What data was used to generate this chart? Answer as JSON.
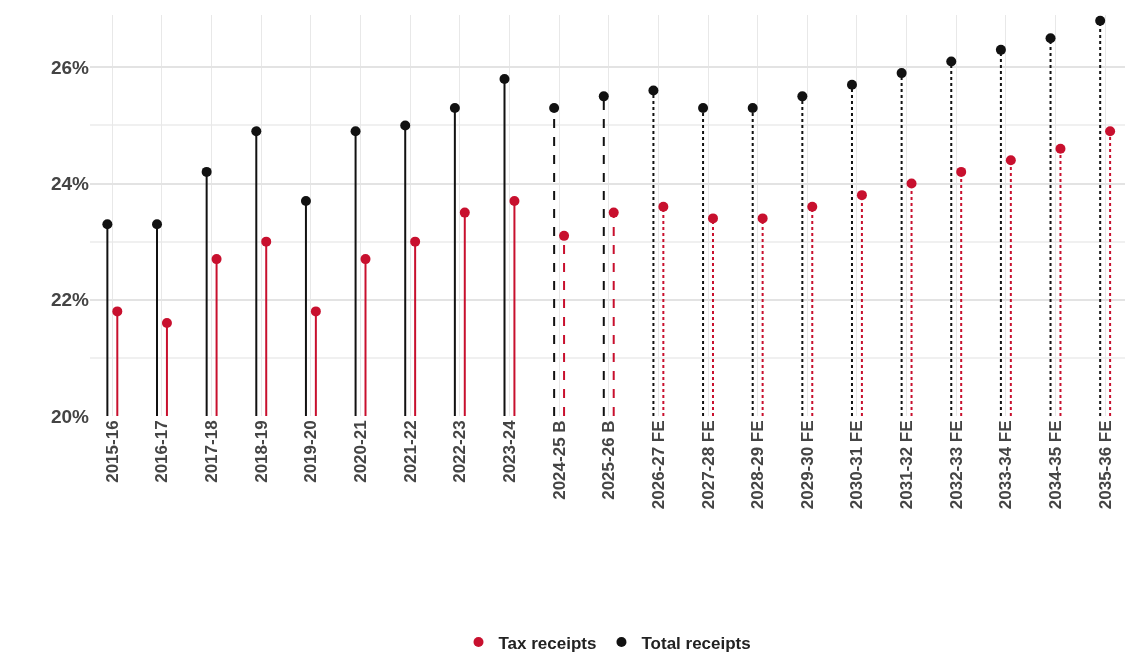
{
  "chart_data": {
    "type": "lollipop",
    "categories": [
      "2015-16",
      "2016-17",
      "2017-18",
      "2018-19",
      "2019-20",
      "2020-21",
      "2021-22",
      "2022-23",
      "2023-24",
      "2024-25 B",
      "2025-26 B",
      "2026-27 FE",
      "2027-28 FE",
      "2028-29 FE",
      "2029-30 FE",
      "2030-31 FE",
      "2031-32 FE",
      "2032-33 FE",
      "2033-34 FE",
      "2034-35 FE",
      "2035-36 FE"
    ],
    "series": [
      {
        "name": "Total receipts",
        "color": "#111111",
        "line_style": "solid",
        "values": [
          23.3,
          23.3,
          24.2,
          24.9,
          23.7,
          24.9,
          25.0,
          25.3,
          25.8,
          null,
          null,
          null,
          null,
          null,
          null,
          null,
          null,
          null,
          null,
          null,
          null
        ]
      },
      {
        "color": "#111111",
        "line_style": "dashed",
        "values": [
          null,
          null,
          null,
          null,
          null,
          null,
          null,
          null,
          null,
          25.3,
          25.5,
          null,
          null,
          null,
          null,
          null,
          null,
          null,
          null,
          null,
          null
        ]
      },
      {
        "color": "#111111",
        "line_style": "dotted",
        "values": [
          null,
          null,
          null,
          null,
          null,
          null,
          null,
          null,
          null,
          null,
          null,
          25.6,
          25.3,
          25.3,
          25.5,
          25.7,
          25.9,
          26.1,
          26.3,
          26.5,
          26.8
        ]
      },
      {
        "name": "Tax receipts",
        "color": "#c8102e",
        "line_style": "solid",
        "values": [
          21.8,
          21.6,
          22.7,
          23.0,
          21.8,
          22.7,
          23.0,
          23.5,
          23.7,
          null,
          null,
          null,
          null,
          null,
          null,
          null,
          null,
          null,
          null,
          null,
          null
        ]
      },
      {
        "color": "#c8102e",
        "line_style": "dashed",
        "values": [
          null,
          null,
          null,
          null,
          null,
          null,
          null,
          null,
          null,
          23.1,
          23.5,
          null,
          null,
          null,
          null,
          null,
          null,
          null,
          null,
          null,
          null
        ]
      },
      {
        "color": "#c8102e",
        "line_style": "dotted",
        "values": [
          null,
          null,
          null,
          null,
          null,
          null,
          null,
          null,
          null,
          null,
          null,
          23.6,
          23.4,
          23.4,
          23.6,
          23.8,
          24.0,
          24.2,
          24.4,
          24.6,
          24.9
        ]
      }
    ],
    "ylim": [
      20,
      26.9
    ],
    "yticks": [
      {
        "value": 20,
        "label": "20%"
      },
      {
        "value": 22,
        "label": "22%"
      },
      {
        "value": 24,
        "label": "24%"
      },
      {
        "value": 26,
        "label": "26%"
      }
    ],
    "grid": true,
    "legend": "bottom",
    "marker": "circle"
  }
}
